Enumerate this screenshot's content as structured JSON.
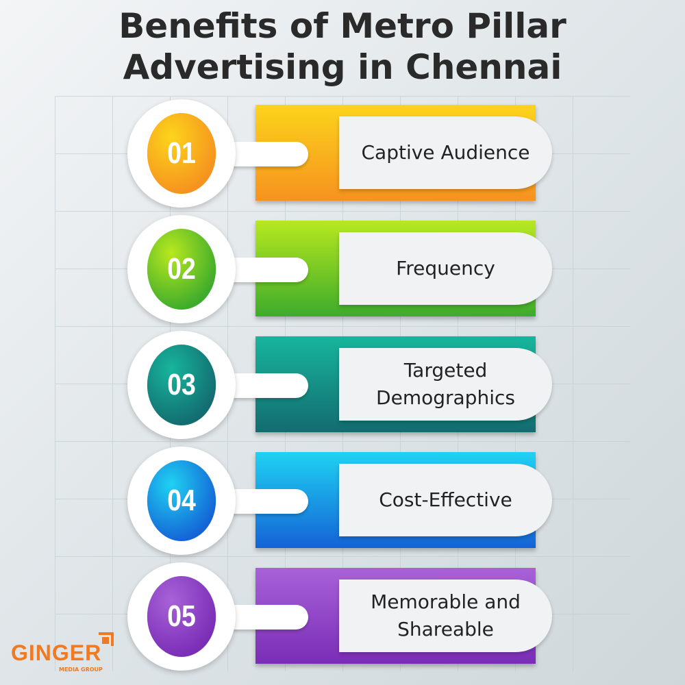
{
  "title_line1": "Benefits of Metro Pillar",
  "title_line2": "Advertising in Chennai",
  "items": [
    {
      "number": "01",
      "label": "Captive Audience",
      "colors": [
        "#fcd41c",
        "#f6921e"
      ]
    },
    {
      "number": "02",
      "label": "Frequency",
      "colors": [
        "#b8e81f",
        "#3dab2b"
      ]
    },
    {
      "number": "03",
      "label": "Targeted Demographics",
      "colors": [
        "#17b59c",
        "#136c70"
      ]
    },
    {
      "number": "04",
      "label": "Cost-Effective",
      "colors": [
        "#1fd2f2",
        "#1463d6"
      ]
    },
    {
      "number": "05",
      "label": "Memorable and Shareable",
      "colors": [
        "#a862d8",
        "#7a2db6"
      ]
    }
  ],
  "logo": {
    "name": "GINGER",
    "tagline": "MEDIA GROUP",
    "color": "#f07a22"
  }
}
